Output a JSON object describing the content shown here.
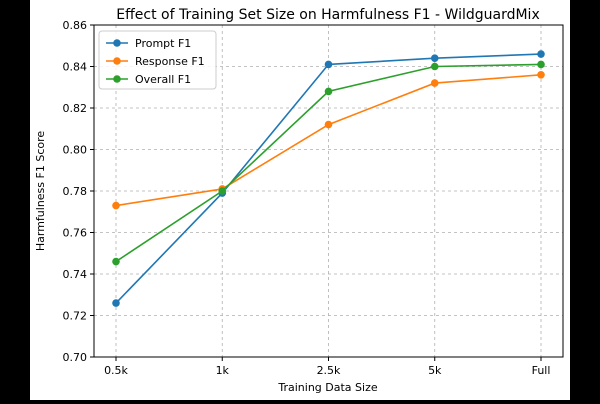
{
  "chart_data": {
    "type": "line",
    "title": "Effect of Training Set Size on Harmfulness F1 - WildguardMix",
    "xlabel": "Training Data Size",
    "ylabel": "Harmfulness F1 Score",
    "categories": [
      "0.5k",
      "1k",
      "2.5k",
      "5k",
      "Full"
    ],
    "ylim": [
      0.7,
      0.86
    ],
    "yticks": [
      0.7,
      0.72,
      0.74,
      0.76,
      0.78,
      0.8,
      0.82,
      0.84,
      0.86
    ],
    "ytick_labels": [
      "0.70",
      "0.72",
      "0.74",
      "0.76",
      "0.78",
      "0.80",
      "0.82",
      "0.84",
      "0.86"
    ],
    "grid": true,
    "legend_position": "top-left",
    "series": [
      {
        "name": "Prompt F1",
        "color": "#1f77b4",
        "values": [
          0.726,
          0.779,
          0.841,
          0.844,
          0.846
        ]
      },
      {
        "name": "Response F1",
        "color": "#ff7f0e",
        "values": [
          0.773,
          0.781,
          0.812,
          0.832,
          0.836
        ]
      },
      {
        "name": "Overall F1",
        "color": "#2ca02c",
        "values": [
          0.746,
          0.78,
          0.828,
          0.84,
          0.841
        ]
      }
    ]
  }
}
